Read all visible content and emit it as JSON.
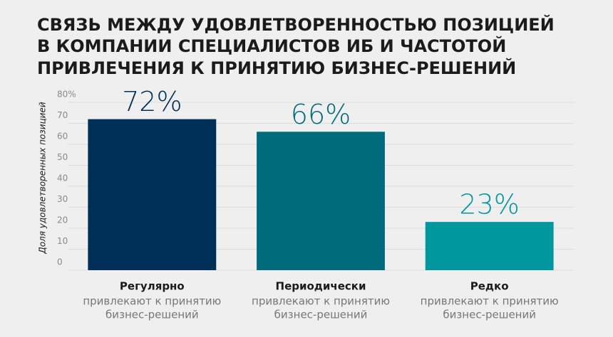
{
  "chart_data": {
    "type": "bar",
    "title": [
      "СВЯЗЬ МЕЖДУ УДОВЛЕТВОРЕННОСТЬЮ ПОЗИЦИЕЙ",
      "В КОМПАНИИ СПЕЦИАЛИСТОВ ИБ И ЧАСТОТОЙ",
      "ПРИВЛЕЧЕНИЯ К ПРИНЯТИЮ БИЗНЕС-РЕШЕНИЙ"
    ],
    "y_label": "Доля удовлетворенных позицией",
    "categories": [
      "Регулярно",
      "Периодически",
      "Редко"
    ],
    "category_notes": [
      [
        "привлекают к принятию",
        "бизнес-решений"
      ],
      [
        "привлекают к принятию",
        "бизнес-решений"
      ],
      [
        "привлекают к принятию",
        "бизнес-решений"
      ]
    ],
    "values": [
      72,
      66,
      23
    ],
    "value_labels": [
      "72%",
      "66%",
      "23%"
    ],
    "colors": [
      "#003057",
      "#006b7a",
      "#00979e"
    ],
    "ylim": [
      0,
      80
    ],
    "yticks": [
      0,
      10,
      20,
      30,
      40,
      50,
      60,
      70,
      {
        "value": 80,
        "label": "80%"
      }
    ],
    "grid": true
  }
}
